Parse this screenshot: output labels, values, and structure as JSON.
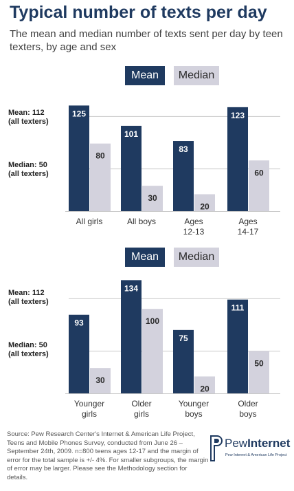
{
  "title": "Typical number of texts per day",
  "subtitle": "The mean and median number of texts sent per day by teen texters, by age and sex",
  "legend": {
    "mean": "Mean",
    "median": "Median"
  },
  "reference_lines": {
    "mean": {
      "value": 112,
      "label1": "Mean: 112",
      "label2": "(all texters)"
    },
    "median": {
      "value": 50,
      "label1": "Median: 50",
      "label2": "(all texters)"
    }
  },
  "chart_data": [
    {
      "type": "bar",
      "categories": [
        [
          "All girls"
        ],
        [
          "All boys"
        ],
        [
          "Ages",
          "12-13"
        ],
        [
          "Ages",
          "14-17"
        ]
      ],
      "series": [
        {
          "name": "Mean",
          "color": "#1f3a60",
          "values": [
            125,
            101,
            83,
            123
          ]
        },
        {
          "name": "Median",
          "color": "#d3d2dd",
          "values": [
            80,
            30,
            20,
            60
          ]
        }
      ],
      "reference_lines": [
        112,
        50
      ]
    },
    {
      "type": "bar",
      "categories": [
        [
          "Younger",
          "girls"
        ],
        [
          "Older",
          "girls"
        ],
        [
          "Younger",
          "boys"
        ],
        [
          "Older",
          "boys"
        ]
      ],
      "series": [
        {
          "name": "Mean",
          "color": "#1f3a60",
          "values": [
            93,
            134,
            75,
            111
          ]
        },
        {
          "name": "Median",
          "color": "#d3d2dd",
          "values": [
            30,
            100,
            20,
            50
          ]
        }
      ],
      "reference_lines": [
        112,
        50
      ]
    }
  ],
  "source": "Source: Pew Research Center's Internet & American Life Project, Teens and Mobile Phones Survey, conducted from June 26 – September 24th, 2009. n=800 teens ages 12-17 and the margin of error for the total sample is +/- 4%. For smaller subgroups, the margin of error may be larger. Please see the Methodology section for details.",
  "logo": {
    "word1": "Pew",
    "word2": "Internet",
    "tagline": "Pew Internet & American Life Project"
  }
}
